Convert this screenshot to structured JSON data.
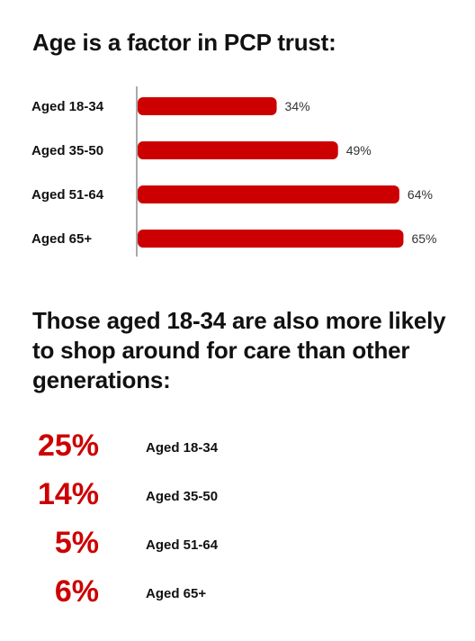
{
  "colors": {
    "accent": "#cc0000",
    "text": "#111111",
    "axis": "#555555"
  },
  "title": "Age is a factor in PCP trust:",
  "chart_data": {
    "type": "bar",
    "orientation": "horizontal",
    "categories": [
      "Aged 18-34",
      "Aged 35-50",
      "Aged 51-64",
      "Aged 65+"
    ],
    "values": [
      34,
      49,
      64,
      65
    ],
    "value_labels": [
      "34%",
      "49%",
      "64%",
      "65%"
    ],
    "unit": "%",
    "xlim": [
      0,
      66
    ],
    "grid": false,
    "legend": "none"
  },
  "subtitle": "Those aged 18-34 are also more likely to shop around for care than other generations:",
  "stats": [
    {
      "value": "25%",
      "label": "Aged 18-34"
    },
    {
      "value": "14%",
      "label": "Aged 35-50"
    },
    {
      "value": "5%",
      "label": "Aged 51-64"
    },
    {
      "value": "6%",
      "label": "Aged 65+"
    }
  ]
}
